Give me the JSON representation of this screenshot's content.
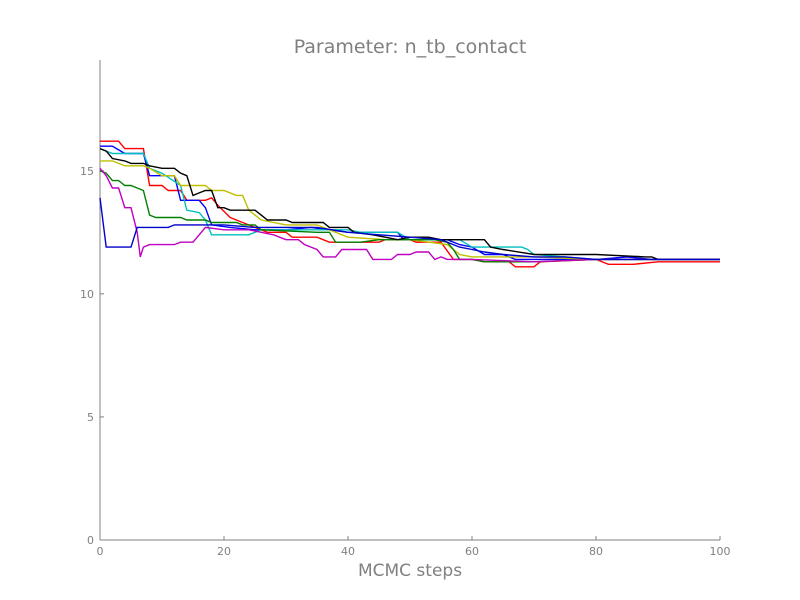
{
  "chart_data": {
    "type": "line",
    "title": "Parameter: n_tb_contact",
    "xlabel": "MCMC steps",
    "ylabel": "",
    "xlim": [
      0,
      100
    ],
    "ylim": [
      0,
      19.5
    ],
    "x_ticks": [
      0,
      20,
      40,
      60,
      80,
      100
    ],
    "y_ticks": [
      0,
      5,
      10,
      15
    ],
    "grid": false,
    "legend": "none",
    "series": [
      {
        "color": "#ff0000",
        "points": [
          [
            0,
            16.2
          ],
          [
            3,
            16.2
          ],
          [
            4,
            15.9
          ],
          [
            7,
            15.9
          ],
          [
            8,
            14.4
          ],
          [
            10,
            14.4
          ],
          [
            11,
            14.2
          ],
          [
            13,
            14.2
          ],
          [
            14,
            13.8
          ],
          [
            17,
            13.8
          ],
          [
            18,
            13.9
          ],
          [
            19,
            13.6
          ],
          [
            21,
            13.1
          ],
          [
            23,
            12.9
          ],
          [
            25,
            12.7
          ],
          [
            27,
            12.5
          ],
          [
            30,
            12.5
          ],
          [
            31,
            12.3
          ],
          [
            35,
            12.3
          ],
          [
            37,
            12.1
          ],
          [
            45,
            12.1
          ],
          [
            46,
            12.2
          ],
          [
            50,
            12.2
          ],
          [
            51,
            12.1
          ],
          [
            55,
            12.1
          ],
          [
            57,
            11.4
          ],
          [
            60,
            11.4
          ],
          [
            62,
            11.3
          ],
          [
            66,
            11.3
          ],
          [
            67,
            11.1
          ],
          [
            70,
            11.1
          ],
          [
            71,
            11.3
          ],
          [
            80,
            11.4
          ],
          [
            82,
            11.2
          ],
          [
            86,
            11.2
          ],
          [
            90,
            11.3
          ],
          [
            100,
            11.3
          ]
        ]
      },
      {
        "color": "#0000ff",
        "points": [
          [
            0,
            16.0
          ],
          [
            2,
            16.0
          ],
          [
            4,
            15.7
          ],
          [
            7,
            15.7
          ],
          [
            8,
            14.8
          ],
          [
            12,
            14.8
          ],
          [
            13,
            13.8
          ],
          [
            16,
            13.8
          ],
          [
            17,
            13.5
          ],
          [
            18,
            12.8
          ],
          [
            21,
            12.7
          ],
          [
            25,
            12.6
          ],
          [
            30,
            12.6
          ],
          [
            34,
            12.7
          ],
          [
            40,
            12.5
          ],
          [
            44,
            12.5
          ],
          [
            48,
            12.5
          ],
          [
            49,
            12.2
          ],
          [
            56,
            12.2
          ],
          [
            58,
            12.0
          ],
          [
            60,
            11.9
          ],
          [
            62,
            11.6
          ],
          [
            65,
            11.6
          ],
          [
            67,
            11.4
          ],
          [
            80,
            11.4
          ],
          [
            85,
            11.5
          ],
          [
            89,
            11.4
          ],
          [
            100,
            11.4
          ]
        ]
      },
      {
        "color": "#00bfbf",
        "points": [
          [
            0,
            15.9
          ],
          [
            2,
            15.7
          ],
          [
            7,
            15.7
          ],
          [
            8,
            15.1
          ],
          [
            10,
            14.9
          ],
          [
            13,
            14.4
          ],
          [
            14,
            13.4
          ],
          [
            16,
            13.3
          ],
          [
            17,
            13.0
          ],
          [
            18,
            12.4
          ],
          [
            24,
            12.4
          ],
          [
            25,
            12.5
          ],
          [
            26,
            12.6
          ],
          [
            30,
            12.6
          ],
          [
            40,
            12.6
          ],
          [
            42,
            12.5
          ],
          [
            48,
            12.5
          ],
          [
            50,
            12.2
          ],
          [
            58,
            12.2
          ],
          [
            60,
            11.9
          ],
          [
            62,
            11.9
          ],
          [
            65,
            11.9
          ],
          [
            68,
            11.9
          ],
          [
            69,
            11.8
          ],
          [
            70,
            11.6
          ],
          [
            75,
            11.5
          ],
          [
            80,
            11.4
          ],
          [
            90,
            11.4
          ],
          [
            100,
            11.4
          ]
        ]
      },
      {
        "color": "#bfbf00",
        "points": [
          [
            0,
            15.4
          ],
          [
            2,
            15.4
          ],
          [
            4,
            15.2
          ],
          [
            7,
            15.2
          ],
          [
            8,
            15.1
          ],
          [
            10,
            14.8
          ],
          [
            12,
            14.8
          ],
          [
            13,
            14.4
          ],
          [
            15,
            14.4
          ],
          [
            17,
            14.4
          ],
          [
            18,
            14.2
          ],
          [
            20,
            14.2
          ],
          [
            22,
            14.0
          ],
          [
            23,
            14.0
          ],
          [
            24,
            13.4
          ],
          [
            26,
            13.0
          ],
          [
            30,
            12.8
          ],
          [
            35,
            12.8
          ],
          [
            37,
            12.6
          ],
          [
            40,
            12.3
          ],
          [
            46,
            12.2
          ],
          [
            50,
            12.2
          ],
          [
            56,
            12.0
          ],
          [
            58,
            11.6
          ],
          [
            60,
            11.5
          ],
          [
            70,
            11.5
          ],
          [
            80,
            11.4
          ],
          [
            100,
            11.4
          ]
        ]
      },
      {
        "color": "#008000",
        "points": [
          [
            0,
            15.0
          ],
          [
            1,
            14.9
          ],
          [
            2,
            14.6
          ],
          [
            3,
            14.6
          ],
          [
            4,
            14.4
          ],
          [
            5,
            14.4
          ],
          [
            6,
            14.3
          ],
          [
            7,
            14.2
          ],
          [
            8,
            13.2
          ],
          [
            9,
            13.1
          ],
          [
            13,
            13.1
          ],
          [
            14,
            13.0
          ],
          [
            17,
            13.0
          ],
          [
            18,
            12.9
          ],
          [
            22,
            12.9
          ],
          [
            23,
            12.8
          ],
          [
            25,
            12.8
          ],
          [
            26,
            12.6
          ],
          [
            35,
            12.5
          ],
          [
            37,
            12.5
          ],
          [
            38,
            12.1
          ],
          [
            42,
            12.1
          ],
          [
            45,
            12.2
          ],
          [
            50,
            12.2
          ],
          [
            54,
            12.2
          ],
          [
            56,
            12.1
          ],
          [
            57,
            11.8
          ],
          [
            58,
            11.4
          ],
          [
            60,
            11.4
          ],
          [
            62,
            11.3
          ],
          [
            70,
            11.3
          ],
          [
            80,
            11.4
          ],
          [
            100,
            11.4
          ]
        ]
      },
      {
        "color": "#bf00bf",
        "points": [
          [
            0,
            15.1
          ],
          [
            1,
            14.8
          ],
          [
            2,
            14.3
          ],
          [
            3,
            14.3
          ],
          [
            4,
            13.5
          ],
          [
            5,
            13.5
          ],
          [
            6,
            12.5
          ],
          [
            6.5,
            11.5
          ],
          [
            7,
            11.9
          ],
          [
            8,
            12.0
          ],
          [
            12,
            12.0
          ],
          [
            13,
            12.1
          ],
          [
            15,
            12.1
          ],
          [
            16,
            12.4
          ],
          [
            17,
            12.7
          ],
          [
            20,
            12.6
          ],
          [
            24,
            12.6
          ],
          [
            26,
            12.5
          ],
          [
            28,
            12.4
          ],
          [
            30,
            12.2
          ],
          [
            32,
            12.2
          ],
          [
            33,
            12.0
          ],
          [
            35,
            11.8
          ],
          [
            36,
            11.5
          ],
          [
            38,
            11.5
          ],
          [
            39,
            11.8
          ],
          [
            42,
            11.8
          ],
          [
            43,
            11.8
          ],
          [
            44,
            11.4
          ],
          [
            47,
            11.4
          ],
          [
            48,
            11.6
          ],
          [
            50,
            11.6
          ],
          [
            51,
            11.7
          ],
          [
            53,
            11.7
          ],
          [
            54,
            11.4
          ],
          [
            55,
            11.5
          ],
          [
            56,
            11.4
          ],
          [
            60,
            11.4
          ],
          [
            70,
            11.3
          ],
          [
            80,
            11.4
          ],
          [
            90,
            11.4
          ],
          [
            100,
            11.4
          ]
        ]
      },
      {
        "color": "#000000",
        "points": [
          [
            0,
            15.9
          ],
          [
            1,
            15.8
          ],
          [
            2,
            15.5
          ],
          [
            4,
            15.4
          ],
          [
            5,
            15.3
          ],
          [
            6,
            15.3
          ],
          [
            7,
            15.3
          ],
          [
            8,
            15.2
          ],
          [
            10,
            15.1
          ],
          [
            12,
            15.1
          ],
          [
            13,
            14.9
          ],
          [
            14,
            14.8
          ],
          [
            15,
            14.0
          ],
          [
            16,
            14.1
          ],
          [
            17,
            14.2
          ],
          [
            18,
            14.2
          ],
          [
            19,
            13.5
          ],
          [
            20,
            13.5
          ],
          [
            21,
            13.4
          ],
          [
            25,
            13.4
          ],
          [
            26,
            13.2
          ],
          [
            27,
            13.0
          ],
          [
            30,
            13.0
          ],
          [
            31,
            12.9
          ],
          [
            36,
            12.9
          ],
          [
            37,
            12.7
          ],
          [
            40,
            12.7
          ],
          [
            41,
            12.5
          ],
          [
            44,
            12.4
          ],
          [
            46,
            12.3
          ],
          [
            48,
            12.2
          ],
          [
            50,
            12.3
          ],
          [
            53,
            12.3
          ],
          [
            55,
            12.2
          ],
          [
            58,
            12.2
          ],
          [
            62,
            12.2
          ],
          [
            63,
            11.9
          ],
          [
            65,
            11.8
          ],
          [
            70,
            11.6
          ],
          [
            80,
            11.6
          ],
          [
            88,
            11.5
          ],
          [
            89,
            11.5
          ],
          [
            90,
            11.4
          ],
          [
            100,
            11.4
          ]
        ]
      },
      {
        "color": "#0000cc",
        "points": [
          [
            0,
            13.9
          ],
          [
            1,
            11.9
          ],
          [
            2,
            11.9
          ],
          [
            5,
            11.9
          ],
          [
            6,
            12.7
          ],
          [
            7,
            12.7
          ],
          [
            11,
            12.7
          ],
          [
            12,
            12.8
          ],
          [
            15,
            12.8
          ],
          [
            20,
            12.8
          ],
          [
            25,
            12.7
          ],
          [
            35,
            12.7
          ],
          [
            40,
            12.5
          ],
          [
            45,
            12.4
          ],
          [
            50,
            12.3
          ],
          [
            55,
            12.2
          ],
          [
            58,
            11.9
          ],
          [
            60,
            11.8
          ],
          [
            62,
            11.7
          ],
          [
            65,
            11.6
          ],
          [
            70,
            11.5
          ],
          [
            75,
            11.5
          ],
          [
            80,
            11.4
          ],
          [
            90,
            11.4
          ],
          [
            100,
            11.4
          ]
        ]
      }
    ]
  }
}
